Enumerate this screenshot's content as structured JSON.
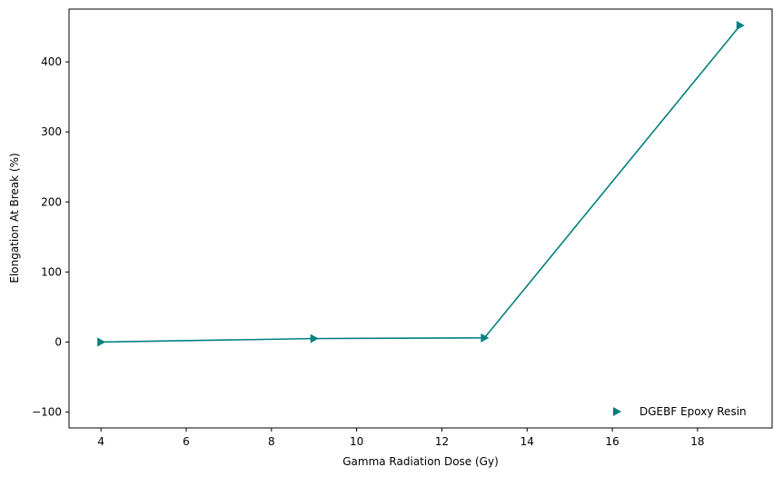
{
  "chart_data": {
    "type": "line",
    "title": "",
    "xlabel": "Gamma Radiation Dose (Gy)",
    "ylabel": "Elongation At Break (%)",
    "xlim": [
      3.25,
      19.75
    ],
    "ylim": [
      -122.6,
      475.3
    ],
    "x_ticks": [
      4,
      6,
      8,
      10,
      12,
      14,
      16,
      18
    ],
    "y_ticks": [
      -100,
      0,
      100,
      200,
      300,
      400
    ],
    "x_tick_labels": [
      "4",
      "6",
      "8",
      "10",
      "12",
      "14",
      "16",
      "18"
    ],
    "y_tick_labels": [
      "−100",
      "0",
      "100",
      "200",
      "300",
      "400"
    ],
    "grid": false,
    "legend_position": "lower-right",
    "series": [
      {
        "name": "DGEBF Epoxy Resin",
        "color": "#008080",
        "marker": "triangle-right",
        "x": [
          4,
          9,
          13,
          19
        ],
        "y": [
          0,
          5,
          6,
          452
        ]
      }
    ]
  }
}
